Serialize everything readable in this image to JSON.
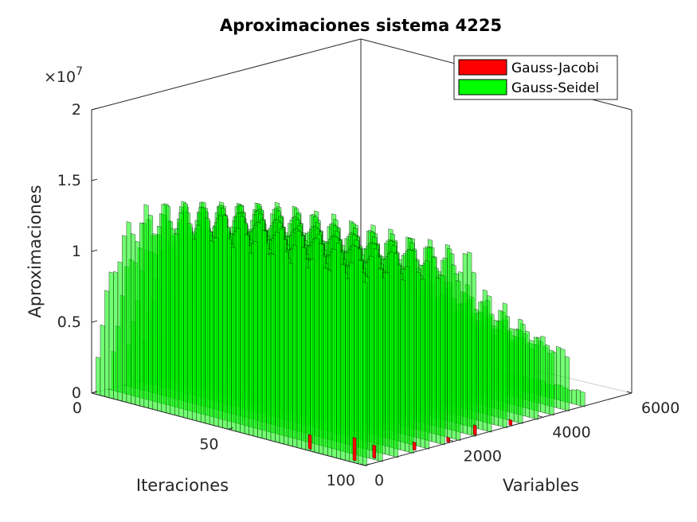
{
  "chart_data": {
    "type": "bar3",
    "title": "Aproximaciones sistema 4225",
    "xlabel": "Iteraciones",
    "ylabel": "Variables",
    "zlabel": "Aproximaciones",
    "exponent_label": "×10",
    "exponent_power": "7",
    "iter_ticks": [
      "0",
      "50",
      "100"
    ],
    "var_ticks": [
      "0",
      "2000",
      "4000",
      "6000"
    ],
    "z_ticks": [
      "0",
      "0.5",
      "1",
      "1.5",
      "2"
    ],
    "iter_range": [
      0,
      100
    ],
    "var_range": [
      0,
      6000
    ],
    "z_range": [
      0,
      20000000
    ],
    "grid": false,
    "legend_position": "top-right",
    "series": [
      {
        "name": "Gauss-Jacobi",
        "color": "#ff0000"
      },
      {
        "name": "Gauss-Seidel",
        "color": "#00ff00"
      }
    ]
  }
}
